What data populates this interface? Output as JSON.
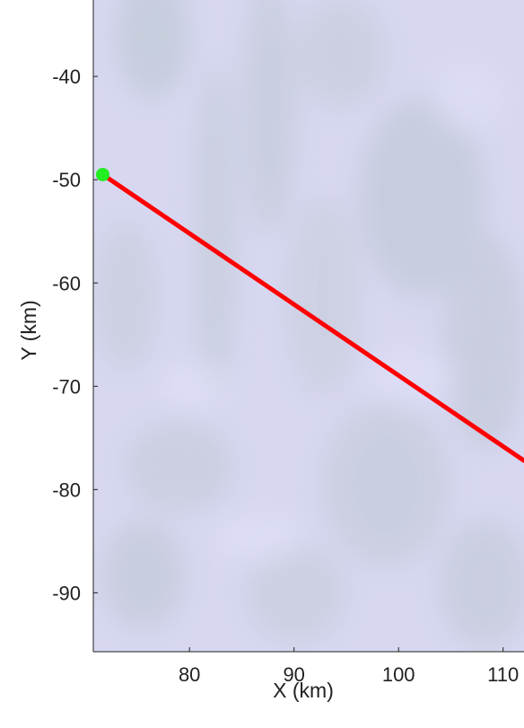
{
  "chart_data": {
    "type": "line",
    "title": "",
    "xlabel": "X (km)",
    "ylabel": "Y (km)",
    "xlim": [
      70.8,
      112
    ],
    "ylim": [
      -95.7,
      -32.6
    ],
    "x_ticks": [
      80,
      90,
      100,
      110
    ],
    "x_tick_labels": [
      "80",
      "90",
      "100",
      "110"
    ],
    "y_ticks": [
      -40,
      -50,
      -60,
      -70,
      -80,
      -90
    ],
    "y_tick_labels": [
      "-40",
      "-50",
      "-60",
      "-70",
      "-80",
      "-90"
    ],
    "grid": false,
    "legend": "none",
    "background": "satellite-style imagery, pale lavender-blue with grey-green mottling",
    "series": [
      {
        "color": "#ff0000",
        "x": [
          71.7,
          112
        ],
        "y": [
          -49.5,
          -77.2
        ]
      }
    ],
    "markers": [
      {
        "x": 71.7,
        "y": -49.5,
        "color": "#22ee22"
      }
    ]
  },
  "colors": {
    "line": "#ff0000",
    "marker": "#22ee22",
    "background_base": "#d6d6f0",
    "axis": "#222222"
  }
}
